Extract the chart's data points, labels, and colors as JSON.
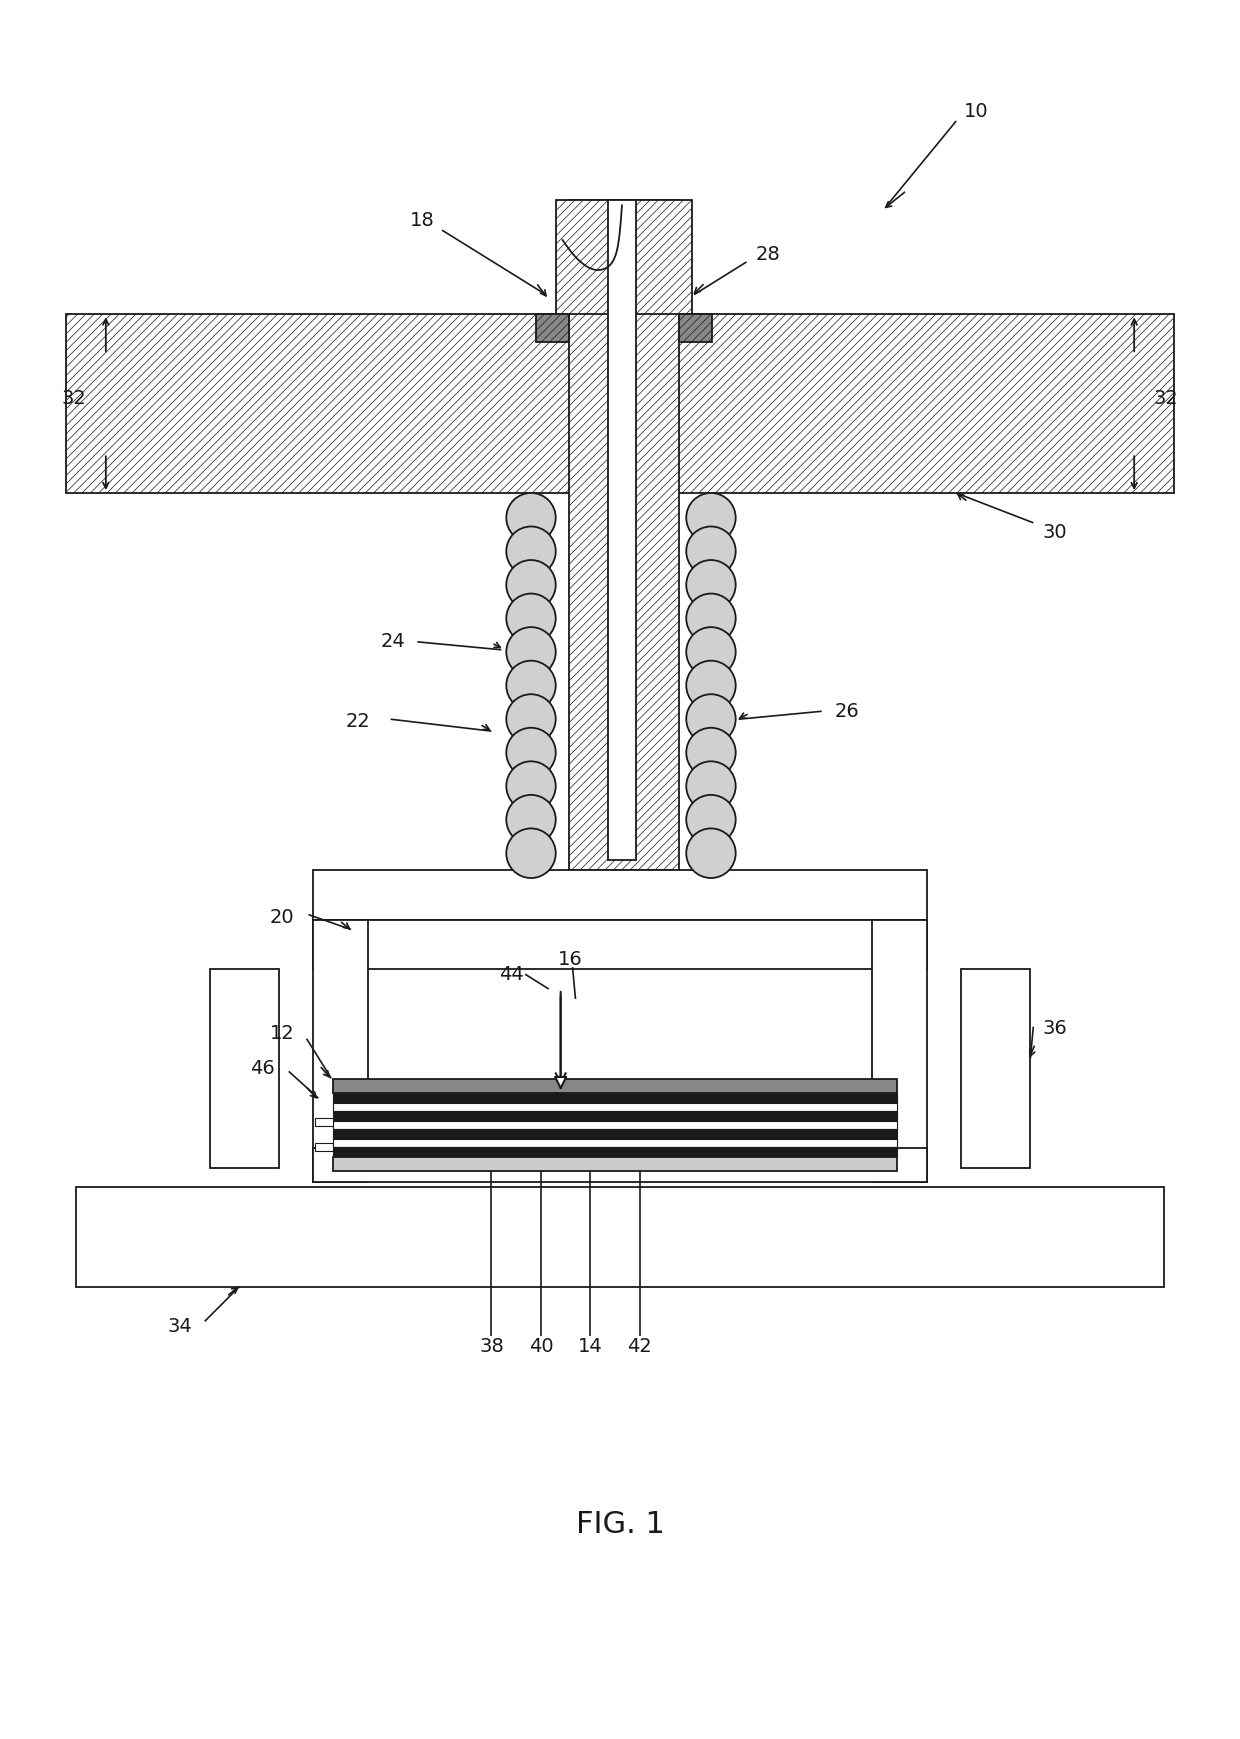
{
  "bg_color": "#ffffff",
  "line_color": "#1a1a1a",
  "fig_width": 12.4,
  "fig_height": 17.39,
  "title": "FIG. 1",
  "lw": 1.3,
  "hatch_lw": 0.5
}
